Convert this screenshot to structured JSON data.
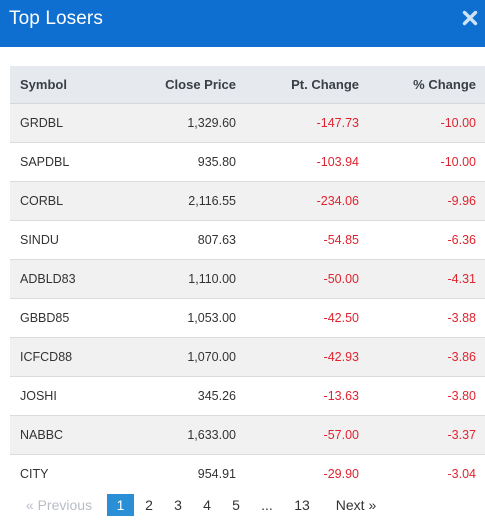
{
  "modal": {
    "title": "Top Losers"
  },
  "table": {
    "headers": {
      "symbol": "Symbol",
      "close_price": "Close Price",
      "pt_change": "Pt. Change",
      "pct_change": "% Change"
    },
    "rows": [
      {
        "symbol": "GRDBL",
        "close_price": "1,329.60",
        "pt_change": "-147.73",
        "pct_change": "-10.00"
      },
      {
        "symbol": "SAPDBL",
        "close_price": "935.80",
        "pt_change": "-103.94",
        "pct_change": "-10.00"
      },
      {
        "symbol": "CORBL",
        "close_price": "2,116.55",
        "pt_change": "-234.06",
        "pct_change": "-9.96"
      },
      {
        "symbol": "SINDU",
        "close_price": "807.63",
        "pt_change": "-54.85",
        "pct_change": "-6.36"
      },
      {
        "symbol": "ADBLD83",
        "close_price": "1,110.00",
        "pt_change": "-50.00",
        "pct_change": "-4.31"
      },
      {
        "symbol": "GBBD85",
        "close_price": "1,053.00",
        "pt_change": "-42.50",
        "pct_change": "-3.88"
      },
      {
        "symbol": "ICFCD88",
        "close_price": "1,070.00",
        "pt_change": "-42.93",
        "pct_change": "-3.86"
      },
      {
        "symbol": "JOSHI",
        "close_price": "345.26",
        "pt_change": "-13.63",
        "pct_change": "-3.80"
      },
      {
        "symbol": "NABBC",
        "close_price": "1,633.00",
        "pt_change": "-57.00",
        "pct_change": "-3.37"
      },
      {
        "symbol": "CITY",
        "close_price": "954.91",
        "pt_change": "-29.90",
        "pct_change": "-3.04"
      }
    ]
  },
  "pagination": {
    "previous": "« Previous",
    "pages": [
      "1",
      "2",
      "3",
      "4",
      "5",
      "...",
      "13"
    ],
    "active_page": "1",
    "next": "Next »"
  },
  "colors": {
    "header_bg": "#0f6fd0",
    "negative": "#e0242f",
    "active_page": "#2b8fd6"
  }
}
